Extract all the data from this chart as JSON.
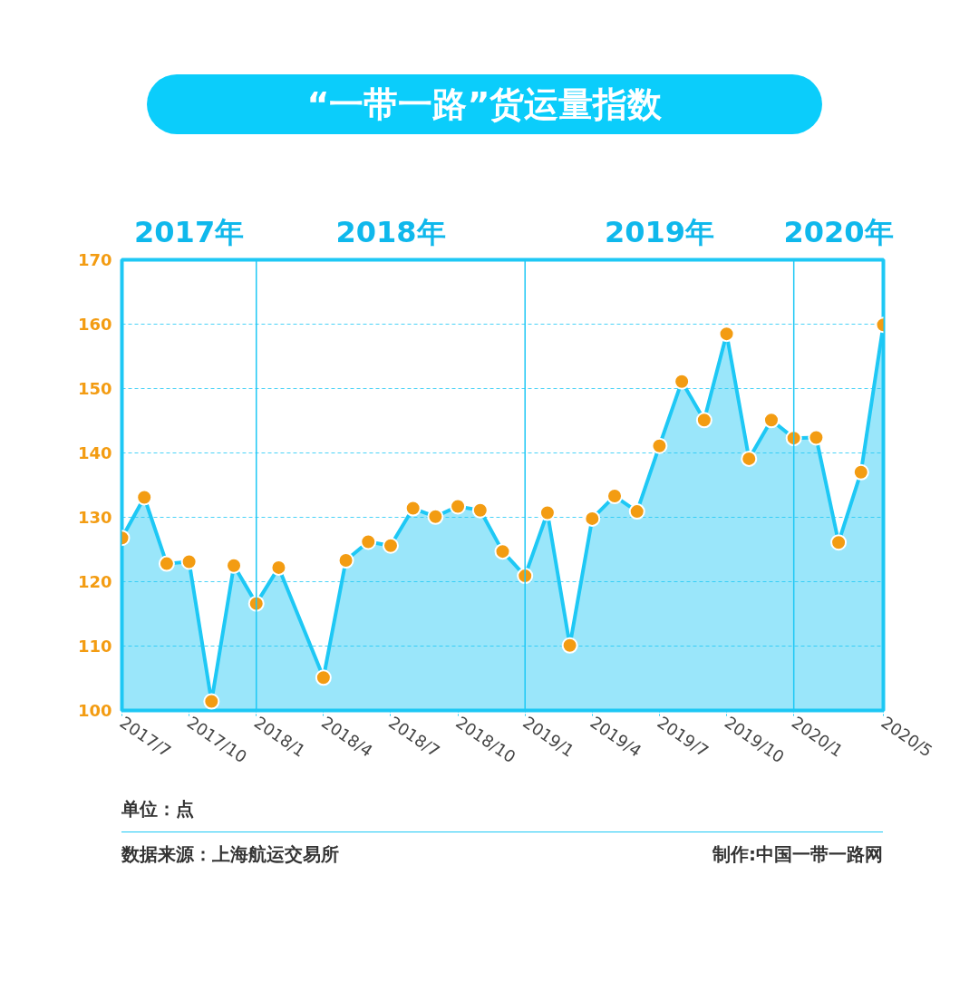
{
  "chart_data": {
    "type": "area",
    "title": "“一带一路”货运量指数",
    "x": [
      "2017-07",
      "2017-08",
      "2017-09",
      "2017-10",
      "2017-11",
      "2017-12",
      "2018-01",
      "2018-02",
      "2018-04",
      "2018-05",
      "2018-06",
      "2018-07",
      "2018-08",
      "2018-09",
      "2018-10",
      "2018-11",
      "2018-12",
      "2019-01",
      "2019-02",
      "2019-03",
      "2019-04",
      "2019-05",
      "2019-06",
      "2019-07",
      "2019-08",
      "2019-09",
      "2019-10",
      "2019-11",
      "2019-12",
      "2020-01",
      "2020-02",
      "2020-03",
      "2020-04",
      "2020-05"
    ],
    "series": [
      {
        "color": "#1ec8f5",
        "values": [
          126.8,
          133.1,
          122.8,
          123.1,
          101.4,
          122.5,
          116.6,
          122.2,
          105.1,
          123.3,
          126.2,
          125.6,
          131.4,
          130.1,
          131.7,
          131.1,
          124.7,
          120.9,
          130.7,
          110.1,
          129.8,
          133.3,
          130.9,
          141.1,
          151.1,
          145.1,
          158.5,
          139.1,
          145.1,
          142.3,
          142.4,
          126.1,
          137.0,
          159.9
        ]
      }
    ],
    "xlim": [
      "2017-07",
      "2020-05"
    ],
    "xticks": [
      {
        "value": "2017-07",
        "label": "2017/7"
      },
      {
        "value": "2017-10",
        "label": "2017/10"
      },
      {
        "value": "2018-01",
        "label": "2018/1"
      },
      {
        "value": "2018-04",
        "label": "2018/4"
      },
      {
        "value": "2018-07",
        "label": "2018/7"
      },
      {
        "value": "2018-10",
        "label": "2018/10"
      },
      {
        "value": "2019-01",
        "label": "2019/1"
      },
      {
        "value": "2019-04",
        "label": "2019/4"
      },
      {
        "value": "2019-07",
        "label": "2019/7"
      },
      {
        "value": "2019-10",
        "label": "2019/10"
      },
      {
        "value": "2020-01",
        "label": "2020/1"
      },
      {
        "value": "2020-05",
        "label": "2020/5"
      }
    ],
    "x2lim": [
      "2017-07",
      "2020-05"
    ],
    "x2ticks": [
      {
        "value": "2017-10",
        "label": "2017年"
      },
      {
        "value": "2018-07",
        "label": "2018年"
      },
      {
        "value": "2019-07",
        "label": "2019年"
      },
      {
        "value": "2020-03",
        "label": "2020年"
      }
    ],
    "ylim": [
      100,
      170
    ],
    "yticks": [
      100,
      110,
      120,
      130,
      140,
      150,
      160,
      170
    ],
    "grid": "y",
    "marker": "circle",
    "line_style": "solid",
    "ref_lines": [
      {
        "axis": "x",
        "value": "2018-01",
        "color": "#1ec8f5"
      },
      {
        "axis": "x",
        "value": "2019-01",
        "color": "#1ec8f5"
      },
      {
        "axis": "x",
        "value": "2020-01",
        "color": "#1ec8f5"
      }
    ],
    "annotations": [
      "单位：点",
      "数据来源：上海航运交易所",
      "制作:中国一带一路网"
    ]
  }
}
